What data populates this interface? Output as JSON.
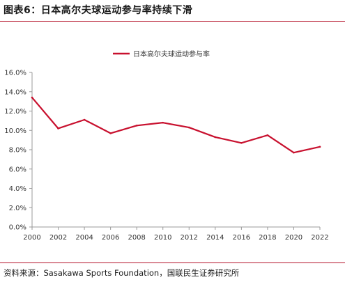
{
  "figure": {
    "title": "图表6：日本高尔夫球运动参与率持续下滑",
    "source": "资料来源：Sasakawa Sports Foundation，国联民生证券研究所"
  },
  "colors": {
    "accent": "#c8102e",
    "rule": "#b5122a",
    "axis": "#999999"
  },
  "chart_data": {
    "type": "line",
    "title": "",
    "xlabel": "",
    "ylabel": "",
    "x": [
      2000,
      2002,
      2004,
      2006,
      2008,
      2010,
      2012,
      2014,
      2016,
      2018,
      2020,
      2022
    ],
    "xtick_labels": [
      "2000",
      "2002",
      "2004",
      "2006",
      "2008",
      "2010",
      "2012",
      "2014",
      "2016",
      "2018",
      "2020",
      "2022"
    ],
    "series": [
      {
        "name": "日本高尔夫球运动参与率",
        "color": "#c8102e",
        "values": [
          13.4,
          10.2,
          11.1,
          9.7,
          10.5,
          10.8,
          10.3,
          9.3,
          8.7,
          9.5,
          7.7,
          8.3
        ]
      }
    ],
    "ylim": [
      0,
      16
    ],
    "yticks": [
      0,
      2,
      4,
      6,
      8,
      10,
      12,
      14,
      16
    ],
    "ytick_labels": [
      "0.0%",
      "2.0%",
      "4.0%",
      "6.0%",
      "8.0%",
      "10.0%",
      "12.0%",
      "14.0%",
      "16.0%"
    ],
    "grid": false,
    "legend": "top-center"
  }
}
